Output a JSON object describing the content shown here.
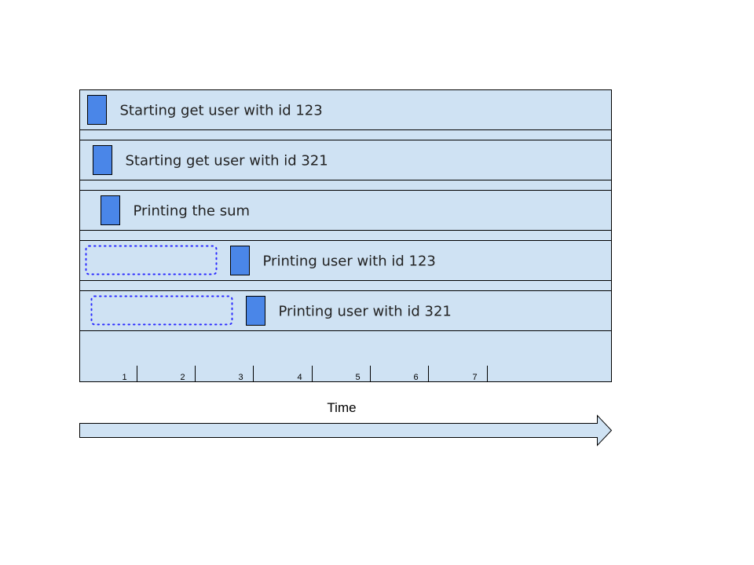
{
  "colors": {
    "lane_fill": "#cfe2f3",
    "lane_stroke": "#000000",
    "task_fill": "#4a86e8",
    "wait_outline": "#2b2bff",
    "arrow_fill": "#cfe2f3"
  },
  "rows": [
    {
      "label": "Starting get user with id 123",
      "start": 0.0
    },
    {
      "label": "Starting get user with id 321",
      "start": 0.3,
      "wait_from": null
    },
    {
      "label": "Printing the sum",
      "start": 0.7
    },
    {
      "label": "Printing user with id 123",
      "start": 2.7,
      "wait_from": 0.0
    },
    {
      "label": "Printing user with id 321",
      "start": 3.0,
      "wait_from": 0.3
    }
  ],
  "axis": {
    "title": "Time",
    "ticks": [
      "1",
      "2",
      "3",
      "4",
      "5",
      "6",
      "7"
    ]
  }
}
